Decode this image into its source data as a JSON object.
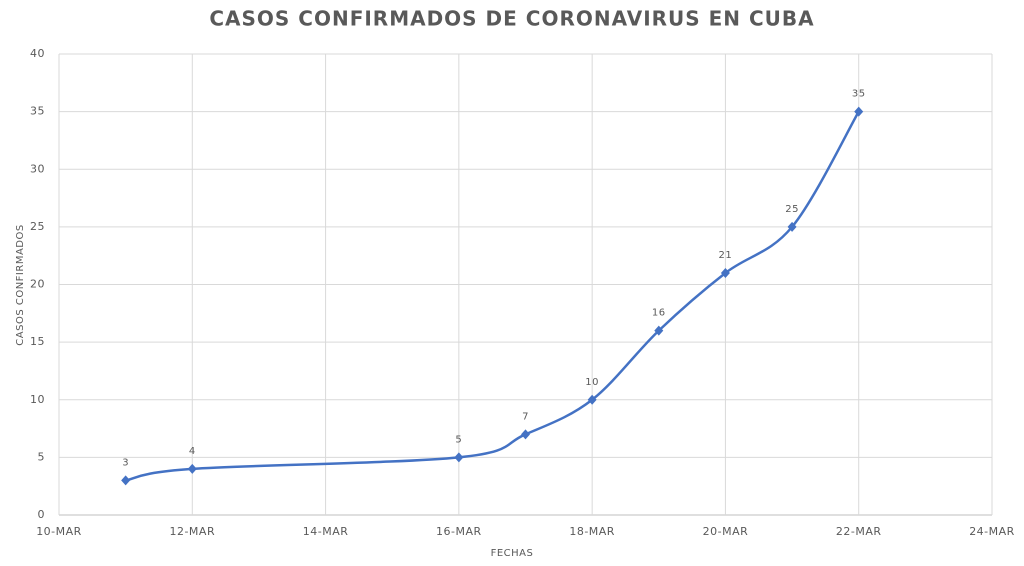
{
  "chart_data": {
    "type": "line",
    "title": "CASOS CONFIRMADOS DE CORONAVIRUS EN CUBA",
    "x_label": "FECHAS",
    "y_label": "CASOS CONFIRMADOS",
    "x": [
      11,
      12,
      16,
      17,
      18,
      19,
      20,
      21,
      22
    ],
    "series": [
      {
        "name": "Casos confirmados",
        "color": "#4472c4",
        "values": [
          3,
          4,
          5,
          7,
          10,
          16,
          21,
          25,
          35
        ]
      }
    ],
    "xlim": [
      10,
      24
    ],
    "xticks": [
      {
        "value": 10,
        "label": "10-MAR"
      },
      {
        "value": 12,
        "label": "12-MAR"
      },
      {
        "value": 14,
        "label": "14-MAR"
      },
      {
        "value": 16,
        "label": "16-MAR"
      },
      {
        "value": 18,
        "label": "18-MAR"
      },
      {
        "value": 20,
        "label": "20-MAR"
      },
      {
        "value": 22,
        "label": "22-MAR"
      },
      {
        "value": 24,
        "label": "24-MAR"
      }
    ],
    "ylim": [
      0,
      40
    ],
    "yticks": [
      0,
      5,
      10,
      15,
      20,
      25,
      30,
      35,
      40
    ],
    "grid": true,
    "smooth": true,
    "data_labels": true
  }
}
